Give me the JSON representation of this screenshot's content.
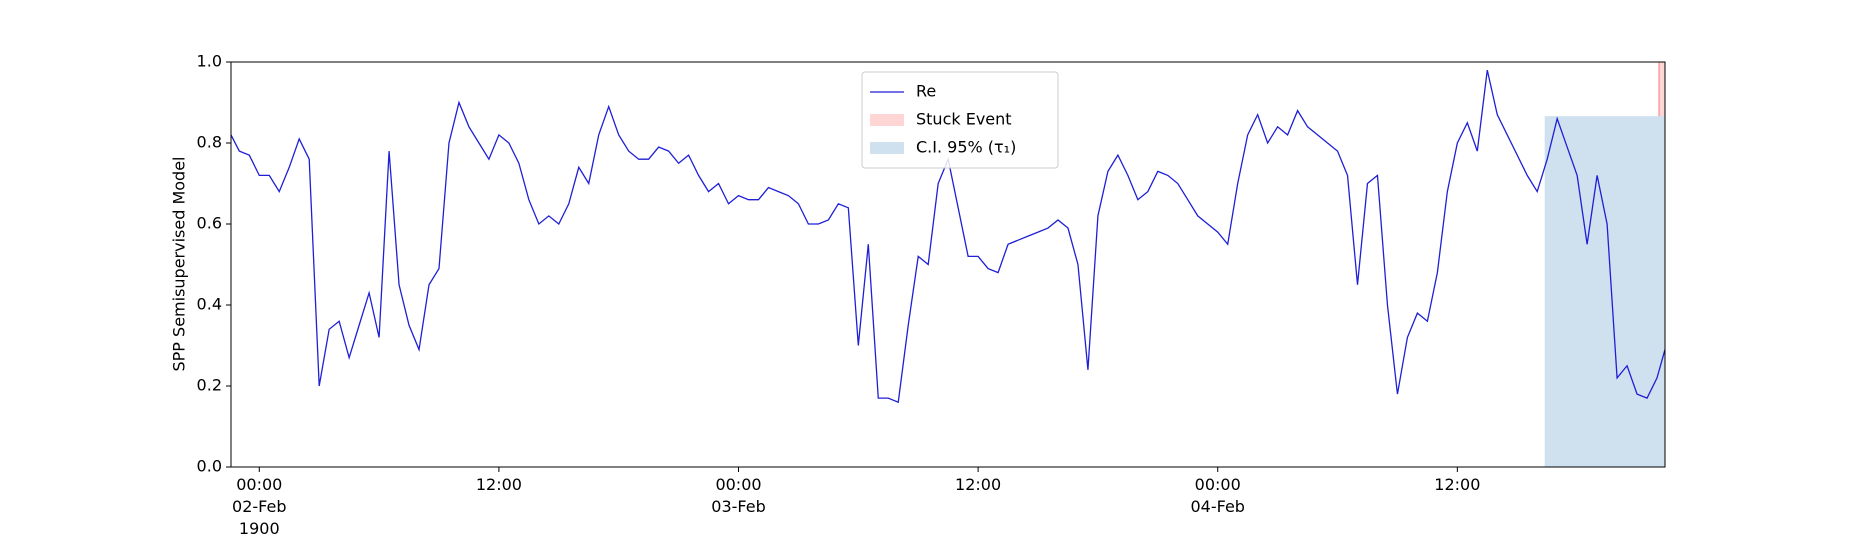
{
  "chart_data": {
    "type": "line",
    "ylabel": "SPP Semisupervised Model",
    "xlim": [
      "1900-02-01 22:35",
      "1900-02-04 22:24"
    ],
    "xticks": [
      {
        "value": "1900-02-02 00:00",
        "label": "00:00\n02-Feb\n1900"
      },
      {
        "value": "1900-02-02 12:00",
        "label": "12:00"
      },
      {
        "value": "1900-02-03 00:00",
        "label": "00:00\n03-Feb"
      },
      {
        "value": "1900-02-03 12:00",
        "label": "12:00"
      },
      {
        "value": "1900-02-04 00:00",
        "label": "00:00\n04-Feb"
      },
      {
        "value": "1900-02-04 12:00",
        "label": "12:00"
      }
    ],
    "ylim": [
      0,
      1
    ],
    "yticks": [
      {
        "value": 0,
        "label": "0.0"
      },
      {
        "value": 0.2,
        "label": "0.2"
      },
      {
        "value": 0.4,
        "label": "0.4"
      },
      {
        "value": 0.6,
        "label": "0.6"
      },
      {
        "value": 0.8,
        "label": "0.8"
      },
      {
        "value": 1,
        "label": "1.0"
      }
    ],
    "legend": "upper center",
    "x": [
      "1900-02-01 22:35",
      "1900-02-01 23:00",
      "1900-02-01 23:30",
      "1900-02-02 00:00",
      "1900-02-02 00:30",
      "1900-02-02 01:00",
      "1900-02-02 01:30",
      "1900-02-02 02:00",
      "1900-02-02 02:30",
      "1900-02-02 03:00",
      "1900-02-02 03:30",
      "1900-02-02 04:00",
      "1900-02-02 04:30",
      "1900-02-02 05:00",
      "1900-02-02 05:30",
      "1900-02-02 06:00",
      "1900-02-02 06:30",
      "1900-02-02 07:00",
      "1900-02-02 07:30",
      "1900-02-02 08:00",
      "1900-02-02 08:30",
      "1900-02-02 09:00",
      "1900-02-02 09:30",
      "1900-02-02 10:00",
      "1900-02-02 10:30",
      "1900-02-02 11:00",
      "1900-02-02 11:30",
      "1900-02-02 12:00",
      "1900-02-02 12:30",
      "1900-02-02 13:00",
      "1900-02-02 13:30",
      "1900-02-02 14:00",
      "1900-02-02 14:30",
      "1900-02-02 15:00",
      "1900-02-02 15:30",
      "1900-02-02 16:00",
      "1900-02-02 16:30",
      "1900-02-02 17:00",
      "1900-02-02 17:30",
      "1900-02-02 18:00",
      "1900-02-02 18:30",
      "1900-02-02 19:00",
      "1900-02-02 19:30",
      "1900-02-02 20:00",
      "1900-02-02 20:30",
      "1900-02-02 21:00",
      "1900-02-02 21:30",
      "1900-02-02 22:00",
      "1900-02-02 22:30",
      "1900-02-02 23:00",
      "1900-02-02 23:30",
      "1900-02-03 00:00",
      "1900-02-03 00:30",
      "1900-02-03 01:00",
      "1900-02-03 01:30",
      "1900-02-03 02:00",
      "1900-02-03 02:30",
      "1900-02-03 03:00",
      "1900-02-03 03:30",
      "1900-02-03 04:00",
      "1900-02-03 04:30",
      "1900-02-03 05:00",
      "1900-02-03 05:30",
      "1900-02-03 06:00",
      "1900-02-03 06:30",
      "1900-02-03 07:00",
      "1900-02-03 07:30",
      "1900-02-03 08:00",
      "1900-02-03 08:30",
      "1900-02-03 09:00",
      "1900-02-03 09:30",
      "1900-02-03 10:00",
      "1900-02-03 10:30",
      "1900-02-03 11:00",
      "1900-02-03 11:30",
      "1900-02-03 12:00",
      "1900-02-03 12:30",
      "1900-02-03 13:00",
      "1900-02-03 13:30",
      "1900-02-03 14:00",
      "1900-02-03 14:30",
      "1900-02-03 15:00",
      "1900-02-03 15:30",
      "1900-02-03 16:00",
      "1900-02-03 16:30",
      "1900-02-03 17:00",
      "1900-02-03 17:30",
      "1900-02-03 18:00",
      "1900-02-03 18:30",
      "1900-02-03 19:00",
      "1900-02-03 19:30",
      "1900-02-03 20:00",
      "1900-02-03 20:30",
      "1900-02-03 21:00",
      "1900-02-03 21:30",
      "1900-02-03 22:00",
      "1900-02-03 22:30",
      "1900-02-03 23:00",
      "1900-02-03 23:30",
      "1900-02-04 00:00",
      "1900-02-04 00:30",
      "1900-02-04 01:00",
      "1900-02-04 01:30",
      "1900-02-04 02:00",
      "1900-02-04 02:30",
      "1900-02-04 03:00",
      "1900-02-04 03:30",
      "1900-02-04 04:00",
      "1900-02-04 04:30",
      "1900-02-04 05:00",
      "1900-02-04 05:30",
      "1900-02-04 06:00",
      "1900-02-04 06:30",
      "1900-02-04 07:00",
      "1900-02-04 07:30",
      "1900-02-04 08:00",
      "1900-02-04 08:30",
      "1900-02-04 09:00",
      "1900-02-04 09:30",
      "1900-02-04 10:00",
      "1900-02-04 10:30",
      "1900-02-04 11:00",
      "1900-02-04 11:30",
      "1900-02-04 12:00",
      "1900-02-04 12:30",
      "1900-02-04 13:00",
      "1900-02-04 13:30",
      "1900-02-04 14:00",
      "1900-02-04 14:30",
      "1900-02-04 15:00",
      "1900-02-04 15:30",
      "1900-02-04 16:00",
      "1900-02-04 16:30",
      "1900-02-04 17:00",
      "1900-02-04 17:30",
      "1900-02-04 18:00",
      "1900-02-04 18:30",
      "1900-02-04 19:00",
      "1900-02-04 19:30",
      "1900-02-04 20:00",
      "1900-02-04 20:30",
      "1900-02-04 21:00",
      "1900-02-04 21:30",
      "1900-02-04 22:00",
      "1900-02-04 22:24"
    ],
    "series": [
      {
        "name": "Re",
        "color": "#1f1fd6",
        "values": [
          0.82,
          0.78,
          0.77,
          0.72,
          0.72,
          0.68,
          0.74,
          0.81,
          0.76,
          0.2,
          0.34,
          0.36,
          0.27,
          0.35,
          0.43,
          0.32,
          0.78,
          0.45,
          0.35,
          0.29,
          0.45,
          0.49,
          0.8,
          0.9,
          0.84,
          0.8,
          0.76,
          0.82,
          0.8,
          0.75,
          0.66,
          0.6,
          0.62,
          0.6,
          0.65,
          0.74,
          0.7,
          0.82,
          0.89,
          0.82,
          0.78,
          0.76,
          0.76,
          0.79,
          0.78,
          0.75,
          0.77,
          0.72,
          0.68,
          0.7,
          0.65,
          0.67,
          0.66,
          0.66,
          0.69,
          0.68,
          0.67,
          0.65,
          0.6,
          0.6,
          0.61,
          0.65,
          0.64,
          0.3,
          0.55,
          0.17,
          0.17,
          0.16,
          0.35,
          0.52,
          0.5,
          0.7,
          0.76,
          0.64,
          0.52,
          0.52,
          0.49,
          0.48,
          0.55,
          0.56,
          0.57,
          0.58,
          0.59,
          0.61,
          0.59,
          0.5,
          0.24,
          0.62,
          0.73,
          0.77,
          0.72,
          0.66,
          0.68,
          0.73,
          0.72,
          0.7,
          0.66,
          0.62,
          0.6,
          0.58,
          0.55,
          0.7,
          0.82,
          0.87,
          0.8,
          0.84,
          0.82,
          0.88,
          0.84,
          0.82,
          0.8,
          0.78,
          0.72,
          0.45,
          0.7,
          0.72,
          0.4,
          0.18,
          0.32,
          0.38,
          0.36,
          0.48,
          0.68,
          0.8,
          0.85,
          0.78,
          0.98,
          0.87,
          0.82,
          0.77,
          0.72,
          0.68,
          0.76,
          0.86,
          0.79,
          0.72,
          0.55,
          0.72,
          0.6,
          0.22,
          0.25,
          0.18,
          0.17,
          0.22,
          0.29
        ]
      }
    ],
    "regions": [
      {
        "name": "Stuck Event",
        "color": "#ffd6d6",
        "x": [
          "1900-02-04 22:06",
          "1900-02-04 22:24"
        ]
      },
      {
        "name": "C.I. 95% (τ₁)",
        "color": "#cfe0ef",
        "x": [
          "1900-02-04 16:24",
          "1900-02-04 22:24"
        ],
        "y": [
          0,
          0.865
        ]
      }
    ]
  }
}
